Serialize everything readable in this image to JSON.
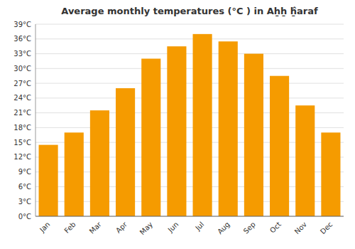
{
  "chart_data": {
    "type": "bar",
    "title": "Average monthly temperatures (°C ) in Aẖẖ ẖ̂araf",
    "categories": [
      "Jan",
      "Feb",
      "Mar",
      "Apr",
      "May",
      "Jun",
      "Jul",
      "Aug",
      "Sep",
      "Oct",
      "Nov",
      "Dec"
    ],
    "values": [
      14.5,
      17.0,
      21.5,
      26.0,
      32.0,
      34.5,
      37.0,
      35.5,
      33.0,
      28.5,
      22.5,
      17.0
    ],
    "color": "#F59B00",
    "ylim": [
      0,
      39
    ],
    "yticks": [
      {
        "value": 0,
        "label": "0°C"
      },
      {
        "value": 3,
        "label": "3°C"
      },
      {
        "value": 6,
        "label": "6°C"
      },
      {
        "value": 9,
        "label": "9°C"
      },
      {
        "value": 12,
        "label": "12°C"
      },
      {
        "value": 15,
        "label": "15°C"
      },
      {
        "value": 18,
        "label": "18°C"
      },
      {
        "value": 21,
        "label": "21°C"
      },
      {
        "value": 24,
        "label": "24°C"
      },
      {
        "value": 27,
        "label": "27°C"
      },
      {
        "value": 30,
        "label": "30°C"
      },
      {
        "value": 33,
        "label": "33°C"
      },
      {
        "value": 36,
        "label": "36°C"
      },
      {
        "value": 39,
        "label": "39°C"
      }
    ],
    "grid": true
  }
}
